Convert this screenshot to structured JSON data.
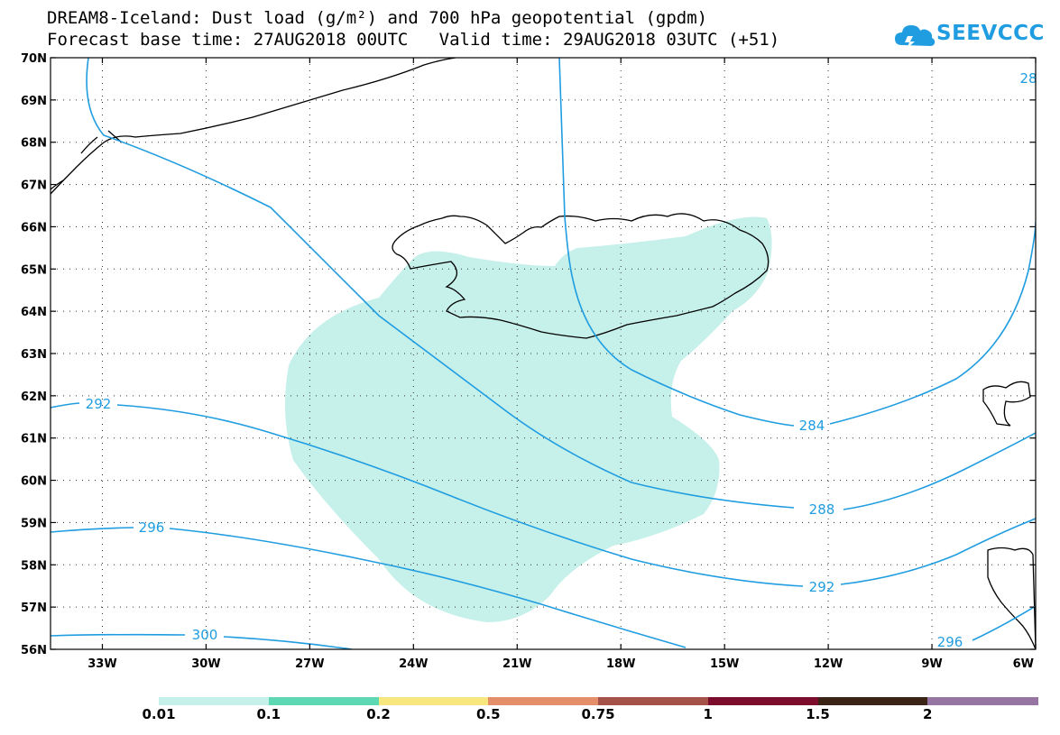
{
  "title": {
    "line1": "DREAM8-Iceland: Dust load (g/m²) and 700 hPa geopotential (gpdm)",
    "line2": "Forecast base time: 27AUG2018 00UTC   Valid time: 29AUG2018 03UTC (+51)"
  },
  "logo": {
    "text": "SEEVCCC",
    "icon": "cloud-icon",
    "color": "#1f9de0"
  },
  "map": {
    "projection": "lat-lon",
    "lon_range": [
      -34.5,
      -6
    ],
    "lat_range": [
      56,
      70
    ],
    "lat_labels": [
      "56N",
      "57N",
      "58N",
      "59N",
      "60N",
      "61N",
      "62N",
      "63N",
      "64N",
      "65N",
      "66N",
      "67N",
      "68N",
      "69N",
      "70N"
    ],
    "lon_labels": [
      "33W",
      "30W",
      "27W",
      "24W",
      "21W",
      "18W",
      "15W",
      "12W",
      "9W",
      "6W"
    ],
    "grid": "dotted",
    "contour_color": "#1f9de0",
    "dust_fill_color": "#c6f0ea",
    "contours": [
      {
        "label": "284"
      },
      {
        "label": "288"
      },
      {
        "label": "292"
      },
      {
        "label": "292"
      },
      {
        "label": "296"
      },
      {
        "label": "296"
      },
      {
        "label": "300"
      },
      {
        "label": "28"
      }
    ]
  },
  "colorbar": {
    "colors": [
      "#c6f0ea",
      "#5ed8b2",
      "#f7e77e",
      "#e58e6a",
      "#a55249",
      "#7d0d2c",
      "#3b2415",
      "#9775a3"
    ],
    "labels": [
      "0.01",
      "0.1",
      "0.2",
      "0.5",
      "0.75",
      "1",
      "1.5",
      "2"
    ]
  }
}
